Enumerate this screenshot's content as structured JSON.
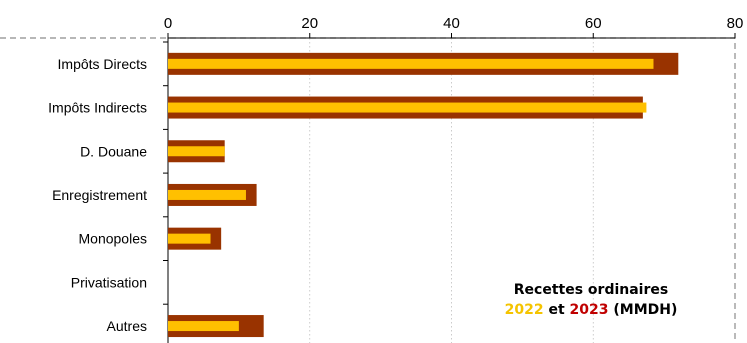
{
  "chart_data": {
    "type": "bar",
    "orientation": "horizontal",
    "categories": [
      "Impôts Directs",
      "Impôts Indirects",
      "D. Douane",
      "Enregistrement",
      "Monopoles",
      "Privatisation",
      "Autres"
    ],
    "series": [
      {
        "name": "2022",
        "values": [
          68.5,
          67.5,
          8,
          11,
          6,
          0,
          10
        ],
        "color": "#ffc000"
      },
      {
        "name": "2023",
        "values": [
          72,
          67,
          8,
          12.5,
          7.5,
          0,
          13.5
        ],
        "color": "#993300"
      }
    ],
    "x_ticks": [
      0,
      20,
      40,
      60,
      80
    ],
    "xlim": [
      0,
      80
    ],
    "x_axis_position": "top",
    "grid": "vertical dotted",
    "legend": {
      "title": "Recettes ordinaires",
      "year1": "2022",
      "connector": "et",
      "year2": "2023",
      "unit": "(MMDH)",
      "placement": "bottom-right"
    }
  }
}
